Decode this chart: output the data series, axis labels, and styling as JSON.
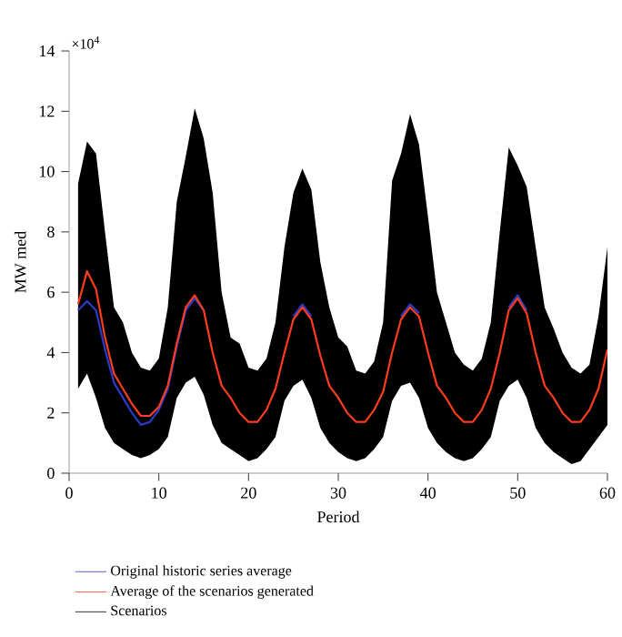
{
  "chart_data": {
    "type": "line",
    "xlabel": "Period",
    "ylabel": "MW med",
    "annotations": [
      "×10$^{4}$"
    ],
    "x": [
      1,
      2,
      3,
      4,
      5,
      6,
      7,
      8,
      9,
      10,
      11,
      12,
      13,
      14,
      15,
      16,
      17,
      18,
      19,
      20,
      21,
      22,
      23,
      24,
      25,
      26,
      27,
      28,
      29,
      30,
      31,
      32,
      33,
      34,
      35,
      36,
      37,
      38,
      39,
      40,
      41,
      42,
      43,
      44,
      45,
      46,
      47,
      48,
      49,
      50,
      51,
      52,
      53,
      54,
      55,
      56,
      57,
      58,
      59,
      60
    ],
    "xlim": [
      0,
      60
    ],
    "xticks": [
      0,
      10,
      20,
      30,
      40,
      50,
      60
    ],
    "ylim": [
      0,
      14
    ],
    "yticks": [
      0,
      2,
      4,
      6,
      8,
      10,
      12,
      14
    ],
    "legend": "bottom",
    "grid": false,
    "marker": "none",
    "line_style": "solid",
    "series": [
      {
        "name": "Original historic series average",
        "color": "#2a3cc8",
        "values": [
          5.4,
          5.7,
          5.4,
          4.1,
          3.0,
          2.5,
          2.0,
          1.6,
          1.7,
          2.1,
          2.8,
          4.2,
          5.4,
          5.8,
          5.4,
          null,
          null,
          null,
          null,
          null,
          null,
          null,
          null,
          null,
          5.2,
          5.6,
          5.2,
          null,
          null,
          null,
          null,
          null,
          null,
          null,
          null,
          null,
          5.2,
          5.6,
          5.3,
          null,
          null,
          null,
          null,
          null,
          null,
          null,
          null,
          null,
          5.5,
          5.9,
          5.4,
          null,
          null,
          null,
          null,
          null,
          null,
          null,
          null,
          null
        ]
      },
      {
        "name": "Average of the scenarios generated",
        "color": "#ff3c1e",
        "values": [
          5.6,
          6.7,
          6.1,
          4.5,
          3.3,
          2.8,
          2.3,
          1.9,
          1.9,
          2.2,
          2.9,
          4.3,
          5.5,
          5.9,
          5.4,
          4.0,
          2.9,
          2.5,
          2.0,
          1.7,
          1.7,
          2.1,
          2.8,
          4.0,
          5.1,
          5.5,
          5.1,
          3.9,
          2.9,
          2.5,
          2.0,
          1.7,
          1.7,
          2.1,
          2.7,
          4.0,
          5.1,
          5.5,
          5.2,
          4.0,
          2.9,
          2.5,
          2.0,
          1.7,
          1.7,
          2.1,
          2.8,
          4.0,
          5.4,
          5.8,
          5.3,
          4.0,
          2.9,
          2.5,
          2.0,
          1.7,
          1.7,
          2.1,
          2.8,
          4.1
        ]
      },
      {
        "name": "Scenarios",
        "color": "#000000",
        "type": "area",
        "values": [
          null,
          null,
          null,
          null,
          null,
          null,
          null,
          null,
          null,
          null,
          null,
          null,
          null,
          null,
          null,
          null,
          null,
          null,
          null,
          null,
          null,
          null,
          null,
          null,
          null,
          null,
          null,
          null,
          null,
          null,
          null,
          null,
          null,
          null,
          null,
          null,
          null,
          null,
          null,
          null,
          null,
          null,
          null,
          null,
          null,
          null,
          null,
          null,
          null,
          null,
          null,
          null,
          null,
          null,
          null,
          null,
          null,
          null,
          null,
          null
        ],
        "upper": [
          9.6,
          11.0,
          10.6,
          8.0,
          5.5,
          5.0,
          4.0,
          3.5,
          3.4,
          3.8,
          5.5,
          9.0,
          10.5,
          12.1,
          11.1,
          9.3,
          6.0,
          4.5,
          4.3,
          3.5,
          3.4,
          3.8,
          5.0,
          7.5,
          9.3,
          10.1,
          9.4,
          7.0,
          5.5,
          4.5,
          4.2,
          3.4,
          3.3,
          3.7,
          5.0,
          9.7,
          10.6,
          11.9,
          10.9,
          8.5,
          6.0,
          5.0,
          4.0,
          3.6,
          3.4,
          3.8,
          5.0,
          8.0,
          10.8,
          10.2,
          9.5,
          7.5,
          5.5,
          4.8,
          4.0,
          3.5,
          3.3,
          3.6,
          5.2,
          7.5
        ],
        "lower": [
          2.8,
          3.3,
          2.5,
          1.5,
          1.0,
          0.8,
          0.6,
          0.5,
          0.6,
          0.8,
          1.2,
          2.5,
          3.0,
          3.2,
          2.6,
          1.6,
          1.0,
          0.8,
          0.6,
          0.4,
          0.5,
          0.8,
          1.2,
          2.4,
          2.9,
          3.1,
          2.5,
          1.5,
          1.0,
          0.7,
          0.5,
          0.4,
          0.5,
          0.8,
          1.2,
          2.4,
          2.9,
          3.0,
          2.5,
          1.5,
          1.0,
          0.7,
          0.5,
          0.4,
          0.5,
          0.8,
          1.2,
          2.4,
          2.9,
          3.1,
          2.5,
          1.5,
          1.0,
          0.7,
          0.5,
          0.3,
          0.4,
          0.8,
          1.2,
          1.6
        ]
      }
    ]
  }
}
